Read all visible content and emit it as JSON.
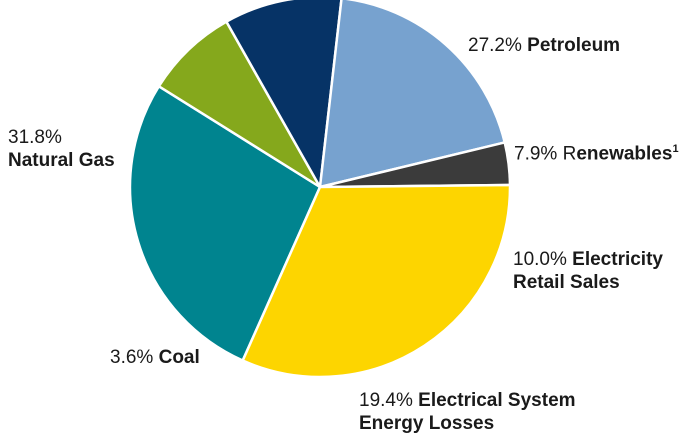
{
  "chart_data": {
    "type": "pie",
    "title": "",
    "start_angle_deg": 204,
    "slices": [
      {
        "label": "Petroleum",
        "percent_text": "27.2%",
        "value": 27.2,
        "color": "#00848f"
      },
      {
        "label": "Renewables",
        "label_prefix": "R",
        "label_rest": "enewables",
        "superscript": "1",
        "percent_text": "7.9%",
        "value": 7.9,
        "color": "#85a81c"
      },
      {
        "label_line1": "Electricity",
        "label_line2": "Retail Sales",
        "percent_text": "10.0%",
        "value": 10.0,
        "color": "#063366"
      },
      {
        "label_line1": "Electrical System",
        "label_line2": "Energy Losses",
        "percent_text": "19.4%",
        "value": 19.4,
        "color": "#77a2cf"
      },
      {
        "label": "Coal",
        "percent_text": "3.6%",
        "value": 3.6,
        "color": "#3b3b3b"
      },
      {
        "label": "Natural Gas",
        "percent_text": "31.8%",
        "value": 31.8,
        "color": "#fdd500"
      }
    ]
  }
}
